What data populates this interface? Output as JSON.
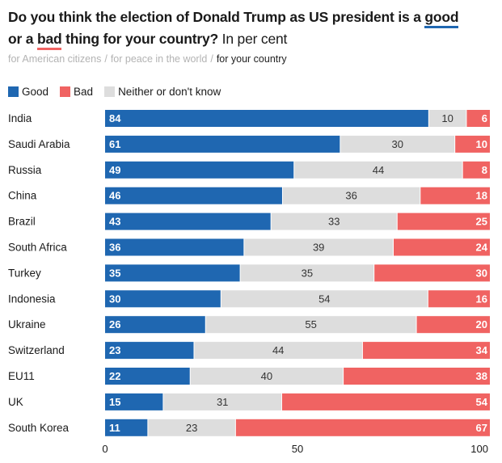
{
  "title": {
    "part1": "Do you think the election of Donald Trump as US president is a ",
    "good": "good",
    "part2": " or a ",
    "bad": "bad",
    "part3": " thing for your country?",
    "unit": " In per cent"
  },
  "tabs": [
    {
      "label": "for American citizens",
      "active": false
    },
    {
      "label": "for peace in the world",
      "active": false
    },
    {
      "label": "for your country",
      "active": true
    }
  ],
  "tab_separator": "/",
  "colors": {
    "good": "#1f67b1",
    "bad": "#f06362",
    "neither": "#dddddd",
    "neither_text": "#333333"
  },
  "chart_data": {
    "type": "bar",
    "orientation": "horizontal",
    "stacked": true,
    "categories": [
      "India",
      "Saudi Arabia",
      "Russia",
      "China",
      "Brazil",
      "South Africa",
      "Turkey",
      "Indonesia",
      "Ukraine",
      "Switzerland",
      "EU11",
      "UK",
      "South Korea"
    ],
    "series": [
      {
        "name": "Good",
        "values": [
          84,
          61,
          49,
          46,
          43,
          36,
          35,
          30,
          26,
          23,
          22,
          15,
          11
        ]
      },
      {
        "name": "Bad",
        "values": [
          6,
          10,
          8,
          18,
          25,
          24,
          30,
          16,
          20,
          34,
          38,
          54,
          67
        ]
      },
      {
        "name": "Neither or don't know",
        "values": [
          10,
          30,
          44,
          36,
          33,
          39,
          35,
          54,
          55,
          44,
          40,
          31,
          23
        ]
      }
    ],
    "stack_order": [
      "Good",
      "Neither or don't know",
      "Bad"
    ],
    "x_ticks": [
      "0",
      "50",
      "100"
    ],
    "xlim": [
      0,
      100
    ],
    "legend_position": "top-left",
    "grid": false
  }
}
